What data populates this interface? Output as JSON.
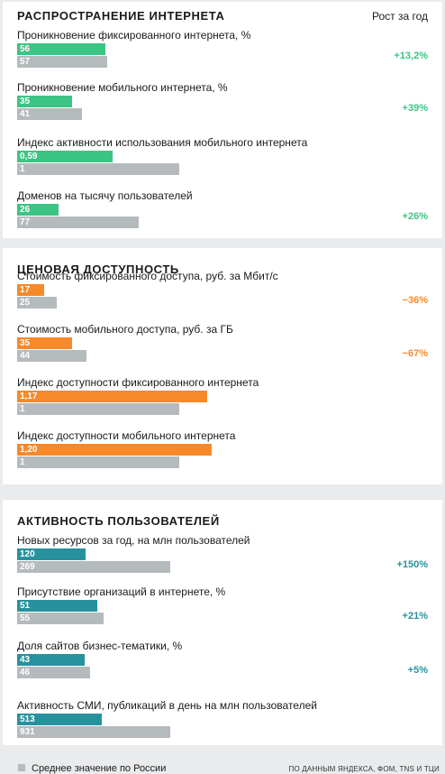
{
  "growth_header": "Рост за год",
  "legend": {
    "label": "Среднее значение по России"
  },
  "source": "ПО ДАННЫМ ЯНДЕКСА, ФОМ, TNS И TЦИ",
  "colors": {
    "avg": "#b5babd",
    "s0": "#3cc484",
    "s1": "#f6892a",
    "s2": "#27929e"
  },
  "chart_data": {
    "type": "bar",
    "orientation": "horizontal",
    "sections": [
      {
        "title": "РАСПРОСТРАНЕНИЕ ИНТЕРНЕТА",
        "color": "#3cc484",
        "metrics": [
          {
            "label": "Проникновение фиксированного интернета, %",
            "value": "56",
            "average": "57",
            "growth": "+13,2%"
          },
          {
            "label": "Проникновение мобильного интернета, %",
            "value": "35",
            "average": "41",
            "growth": "+39%"
          },
          {
            "label": "Индекс активности использования мобильного интернета",
            "value": "0,59",
            "average": "1",
            "growth": ""
          },
          {
            "label": "Доменов на тысячу пользователей",
            "value": "26",
            "average": "77",
            "growth": "+26%"
          }
        ]
      },
      {
        "title": "ЦЕНОВАЯ ДОСТУПНОСТЬ",
        "color": "#f6892a",
        "metrics": [
          {
            "label": "Стоимость фиксированного доступа, руб. за Мбит/с",
            "value": "17",
            "average": "25",
            "growth": "−36%"
          },
          {
            "label": "Стоимость мобильного доступа, руб. за ГБ",
            "value": "35",
            "average": "44",
            "growth": "−67%"
          },
          {
            "label": "Индекс доступности фиксированного интернета",
            "value": "1,17",
            "average": "1",
            "growth": ""
          },
          {
            "label": "Индекс доступности мобильного интернета",
            "value": "1,20",
            "average": "1",
            "growth": ""
          }
        ]
      },
      {
        "title": "АКТИВНОСТЬ ПОЛЬЗОВАТЕЛЕЙ",
        "color": "#27929e",
        "metrics": [
          {
            "label": "Новых ресурсов за год, на млн пользователей",
            "value": "120",
            "average": "269",
            "growth": "+150%"
          },
          {
            "label": "Присутствие организаций в интернете, %",
            "value": "51",
            "average": "55",
            "growth": "+21%"
          },
          {
            "label": "Доля сайтов бизнес-тематики, %",
            "value": "43",
            "average": "46",
            "growth": "+5%"
          },
          {
            "label": "Активность СМИ, публикаций в день на млн пользователей",
            "value": "513",
            "average": "931",
            "growth": ""
          }
        ]
      }
    ]
  }
}
